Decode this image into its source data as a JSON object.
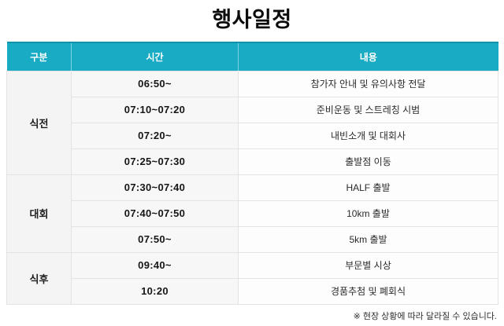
{
  "title": "행사일정",
  "table": {
    "headers": [
      "구분",
      "시간",
      "내용"
    ],
    "groups": [
      {
        "label": "식전",
        "rows": [
          {
            "time": "06:50~",
            "content": "참가자 안내 및 유의사항 전달"
          },
          {
            "time": "07:10~07:20",
            "content": "준비운동 및 스트레칭 시범"
          },
          {
            "time": "07:20~",
            "content": "내빈소개 및 대회사"
          },
          {
            "time": "07:25~07:30",
            "content": "출발점 이동"
          }
        ]
      },
      {
        "label": "대회",
        "rows": [
          {
            "time": "07:30~07:40",
            "content": "HALF 출발"
          },
          {
            "time": "07:40~07:50",
            "content": "10km 출발"
          },
          {
            "time": "07:50~",
            "content": "5km 출발"
          }
        ]
      },
      {
        "label": "식후",
        "rows": [
          {
            "time": "09:40~",
            "content": "부문별 시상"
          },
          {
            "time": "10:20",
            "content": "경품추첨 및 폐회식"
          }
        ]
      }
    ]
  },
  "footnote": "※ 현장 상황에 따라 달라질 수 있습니다.",
  "colors": {
    "header_bg": "#19abc4",
    "header_top": "#0e93a9",
    "border": "#e3e3e3",
    "col_group_bg": "#f4f4f4",
    "col_time_bg": "#f7f7f7",
    "col_content_bg": "#fdfdfd"
  }
}
